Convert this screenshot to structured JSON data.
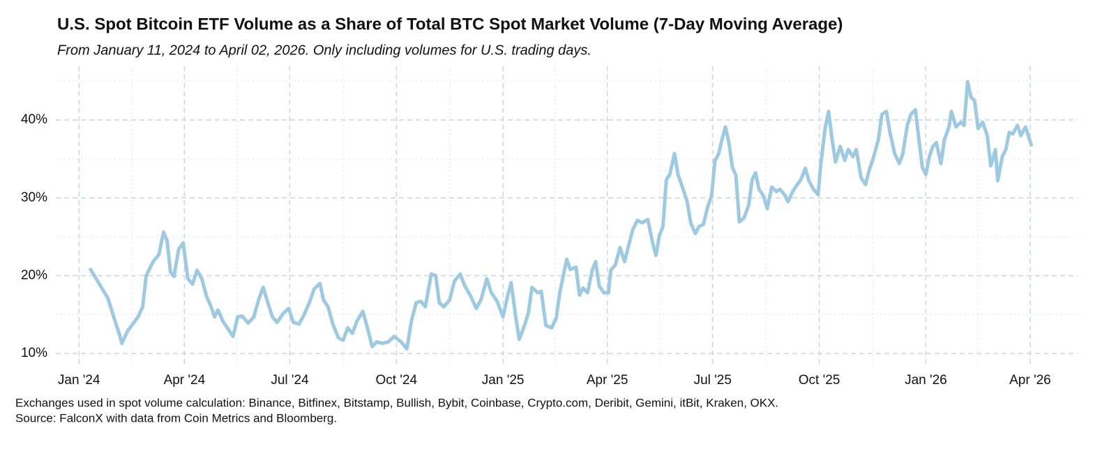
{
  "chart_data": {
    "type": "line",
    "title": "U.S. Spot Bitcoin ETF Volume as a Share of Total BTC Spot Market Volume (7-Day Moving Average)",
    "subtitle": "From January 11, 2024 to April 02, 2026. Only including volumes for U.S. trading days.",
    "footnote": "Exchanges used in spot volume calculation: Binance, Bitfinex, Bitstamp, Bullish, Bybit, Coinbase, Crypto.com, Deribit, Gemini, itBit, Kraken, OKX.",
    "source": "Source: FalconX with data from Coin Metrics and Bloomberg.",
    "color": "#9ecae1",
    "grid": true,
    "xlim": [
      "2023-12-12",
      "2026-05-12"
    ],
    "xticks": [
      {
        "value": "2024-01-01",
        "label": "Jan '24"
      },
      {
        "value": "2024-04-01",
        "label": "Apr '24"
      },
      {
        "value": "2024-07-01",
        "label": "Jul '24"
      },
      {
        "value": "2024-10-01",
        "label": "Oct '24"
      },
      {
        "value": "2025-01-01",
        "label": "Jan '25"
      },
      {
        "value": "2025-04-01",
        "label": "Apr '25"
      },
      {
        "value": "2025-07-01",
        "label": "Jul '25"
      },
      {
        "value": "2025-10-01",
        "label": "Oct '25"
      },
      {
        "value": "2026-01-01",
        "label": "Jan '26"
      },
      {
        "value": "2026-04-01",
        "label": "Apr '26"
      }
    ],
    "ylim": [
      8.4,
      46.9
    ],
    "yticks": [
      {
        "value": 10,
        "label": "10%"
      },
      {
        "value": 20,
        "label": "20%"
      },
      {
        "value": 30,
        "label": "30%"
      },
      {
        "value": 40,
        "label": "40%"
      }
    ],
    "minor_yticks": [
      15,
      25,
      35,
      45
    ],
    "x": [
      "2024-01-11",
      "2024-01-26",
      "2024-01-31",
      "2024-02-05",
      "2024-02-07",
      "2024-02-12",
      "2024-02-21",
      "2024-02-25",
      "2024-02-28",
      "2024-03-05",
      "2024-03-10",
      "2024-03-14",
      "2024-03-17",
      "2024-03-20",
      "2024-03-23",
      "2024-03-27",
      "2024-03-31",
      "2024-04-02",
      "2024-04-04",
      "2024-04-08",
      "2024-04-12",
      "2024-04-16",
      "2024-04-20",
      "2024-04-24",
      "2024-04-27",
      "2024-04-30",
      "2024-05-04",
      "2024-05-08",
      "2024-05-13",
      "2024-05-17",
      "2024-05-21",
      "2024-05-26",
      "2024-05-31",
      "2024-06-04",
      "2024-06-08",
      "2024-06-12",
      "2024-06-16",
      "2024-06-20",
      "2024-06-25",
      "2024-06-30",
      "2024-07-04",
      "2024-07-09",
      "2024-07-13",
      "2024-07-18",
      "2024-07-22",
      "2024-07-27",
      "2024-07-30",
      "2024-08-03",
      "2024-08-07",
      "2024-08-12",
      "2024-08-16",
      "2024-08-20",
      "2024-08-24",
      "2024-08-28",
      "2024-09-02",
      "2024-09-06",
      "2024-09-10",
      "2024-09-14",
      "2024-09-19",
      "2024-09-24",
      "2024-09-29",
      "2024-10-05",
      "2024-10-10",
      "2024-10-14",
      "2024-10-18",
      "2024-10-22",
      "2024-10-26",
      "2024-10-31",
      "2024-11-04",
      "2024-11-07",
      "2024-11-11",
      "2024-11-16",
      "2024-11-20",
      "2024-11-25",
      "2024-11-29",
      "2024-12-04",
      "2024-12-09",
      "2024-12-13",
      "2024-12-18",
      "2024-12-22",
      "2024-12-27",
      "2025-01-01",
      "2025-01-05",
      "2025-01-08",
      "2025-01-12",
      "2025-01-15",
      "2025-01-20",
      "2025-01-23",
      "2025-01-26",
      "2025-01-31",
      "2025-02-03",
      "2025-02-07",
      "2025-02-12",
      "2025-02-16",
      "2025-02-19",
      "2025-02-25",
      "2025-02-28",
      "2025-03-05",
      "2025-03-08",
      "2025-03-11",
      "2025-03-15",
      "2025-03-19",
      "2025-03-22",
      "2025-03-25",
      "2025-03-29",
      "2025-04-02",
      "2025-04-04",
      "2025-04-08",
      "2025-04-12",
      "2025-04-16",
      "2025-04-19",
      "2025-04-23",
      "2025-04-27",
      "2025-05-01",
      "2025-05-06",
      "2025-05-10",
      "2025-05-13",
      "2025-05-16",
      "2025-05-19",
      "2025-05-22",
      "2025-05-25",
      "2025-05-29",
      "2025-06-01",
      "2025-06-05",
      "2025-06-09",
      "2025-06-12",
      "2025-06-16",
      "2025-06-19",
      "2025-06-23",
      "2025-06-27",
      "2025-06-30",
      "2025-07-03",
      "2025-07-06",
      "2025-07-09",
      "2025-07-12",
      "2025-07-15",
      "2025-07-18",
      "2025-07-21",
      "2025-07-24",
      "2025-07-28",
      "2025-08-01",
      "2025-08-04",
      "2025-08-07",
      "2025-08-10",
      "2025-08-14",
      "2025-08-17",
      "2025-08-21",
      "2025-08-25",
      "2025-08-28",
      "2025-09-01",
      "2025-09-04",
      "2025-09-08",
      "2025-09-12",
      "2025-09-15",
      "2025-09-19",
      "2025-09-22",
      "2025-09-26",
      "2025-09-30",
      "2025-10-02",
      "2025-10-06",
      "2025-10-09",
      "2025-10-12",
      "2025-10-15",
      "2025-10-19",
      "2025-10-23",
      "2025-10-26",
      "2025-10-30",
      "2025-11-02",
      "2025-11-06",
      "2025-11-10",
      "2025-11-13",
      "2025-11-17",
      "2025-11-21",
      "2025-11-24",
      "2025-11-28",
      "2025-12-01",
      "2025-12-05",
      "2025-12-09",
      "2025-12-12",
      "2025-12-16",
      "2025-12-19",
      "2025-12-23",
      "2025-12-26",
      "2025-12-29",
      "2026-01-01",
      "2026-01-04",
      "2026-01-07",
      "2026-01-10",
      "2026-01-14",
      "2026-01-17",
      "2026-01-21",
      "2026-01-23",
      "2026-01-27",
      "2026-01-31",
      "2026-02-03",
      "2026-02-06",
      "2026-02-09",
      "2026-02-12",
      "2026-02-15",
      "2026-02-19",
      "2026-02-23",
      "2026-02-26",
      "2026-03-02",
      "2026-03-04",
      "2026-03-08",
      "2026-03-11",
      "2026-03-14",
      "2026-03-17",
      "2026-03-21",
      "2026-03-24",
      "2026-03-28",
      "2026-03-31",
      "2026-04-02"
    ],
    "values": [
      20.8,
      17.1,
      14.7,
      12.4,
      11.3,
      12.9,
      14.7,
      16,
      20,
      21.8,
      22.7,
      25.6,
      24.5,
      20.5,
      19.9,
      23.4,
      24.2,
      21.8,
      19.6,
      18.9,
      20.7,
      19.6,
      17.4,
      16,
      14.7,
      15.6,
      14.2,
      13.3,
      12.2,
      14.7,
      14.8,
      13.9,
      14.7,
      16.9,
      18.5,
      16.5,
      14.7,
      14,
      15.1,
      15.8,
      14,
      13.8,
      14.9,
      16.6,
      18.3,
      19,
      16.9,
      16,
      13.8,
      12,
      11.7,
      13.3,
      12.6,
      14.2,
      15.4,
      13.3,
      10.9,
      11.5,
      11.3,
      11.5,
      12.2,
      11.5,
      10.6,
      14.2,
      16.5,
      16.7,
      16,
      20.2,
      20,
      16.5,
      16,
      16.9,
      19.3,
      20.2,
      18.7,
      17.4,
      15.8,
      16.9,
      19.6,
      17.8,
      16.7,
      14.7,
      17.4,
      19.1,
      14.7,
      11.8,
      13.8,
      15.3,
      18.5,
      17.8,
      18,
      13.6,
      13.3,
      14.6,
      17.8,
      22.1,
      20.8,
      21.1,
      17.5,
      18.4,
      17.8,
      20.7,
      21.8,
      18.7,
      17.8,
      17.8,
      20.7,
      21.4,
      23.6,
      21.8,
      23.6,
      25.9,
      27.1,
      26.8,
      27.2,
      24.3,
      22.6,
      25.2,
      26.3,
      32.3,
      33,
      35.7,
      33,
      31.3,
      29.5,
      26.8,
      25.4,
      26.3,
      26.6,
      29,
      30.2,
      34.8,
      35.6,
      37.5,
      39.1,
      37.1,
      33.9,
      32.9,
      26.9,
      27.4,
      29,
      32.3,
      33.2,
      31.1,
      30.2,
      28.6,
      31.4,
      30.8,
      31.1,
      30.4,
      29.5,
      30.8,
      31.7,
      32.3,
      33.8,
      32.2,
      31.1,
      30.4,
      33.9,
      38.9,
      41.1,
      37.5,
      34.6,
      36.6,
      34.8,
      36.2,
      35.3,
      36.2,
      32.6,
      31.7,
      33.5,
      35.3,
      37.5,
      40.7,
      41.1,
      38.4,
      35.7,
      34.4,
      35.6,
      39.3,
      40.7,
      41.3,
      37.5,
      33.9,
      33,
      35.3,
      36.6,
      37.1,
      34.4,
      37.5,
      39.1,
      41.1,
      39.1,
      39.7,
      39.3,
      44.9,
      42.9,
      42.5,
      38.9,
      39.7,
      38,
      34.1,
      36.2,
      32.2,
      35.3,
      36.2,
      38.4,
      38.2,
      39.3,
      38,
      39.1,
      37.7,
      36.8
    ]
  }
}
